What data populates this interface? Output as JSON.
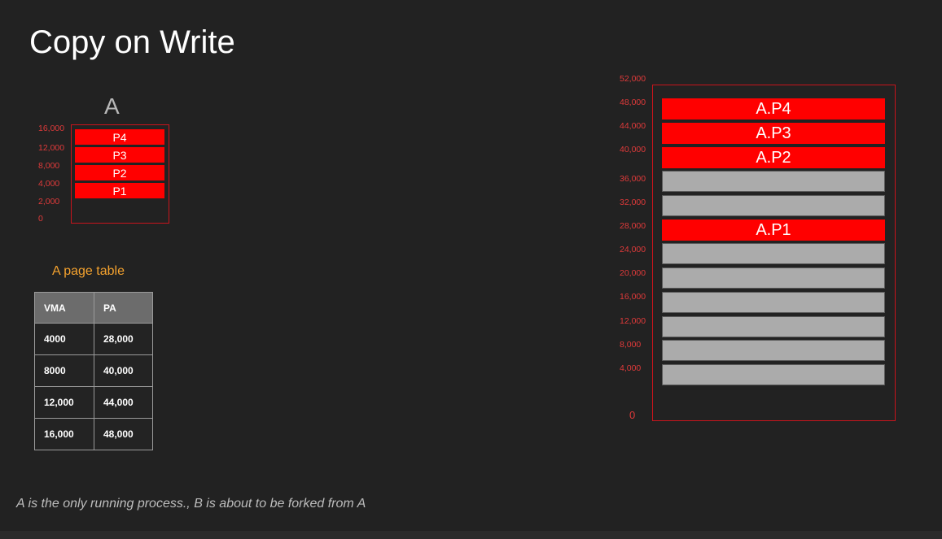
{
  "title": "Copy on Write",
  "process_a": {
    "label": "A",
    "axis": [
      "16,000",
      "12,000",
      "8,000",
      "4,000",
      "2,000",
      "0"
    ],
    "pages": [
      "P4",
      "P3",
      "P2",
      "P1"
    ]
  },
  "page_table": {
    "title": "A page table",
    "headers": [
      "VMA",
      "PA"
    ],
    "rows": [
      [
        "4000",
        "28,000"
      ],
      [
        "8000",
        "40,000"
      ],
      [
        "12,000",
        "44,000"
      ],
      [
        "16,000",
        "48,000"
      ]
    ]
  },
  "physical_memory": {
    "axis": [
      "52,000",
      "48,000",
      "44,000",
      "40,000",
      "36,000",
      "32,000",
      "28,000",
      "24,000",
      "20,000",
      "16,000",
      "12,000",
      "8,000",
      "4,000",
      "0"
    ],
    "frames": [
      {
        "label": "A.P4",
        "state": "used"
      },
      {
        "label": "A.P3",
        "state": "used"
      },
      {
        "label": "A.P2",
        "state": "used"
      },
      {
        "label": "",
        "state": "free"
      },
      {
        "label": "",
        "state": "free"
      },
      {
        "label": "A.P1",
        "state": "used"
      },
      {
        "label": "",
        "state": "free"
      },
      {
        "label": "",
        "state": "free"
      },
      {
        "label": "",
        "state": "free"
      },
      {
        "label": "",
        "state": "free"
      },
      {
        "label": "",
        "state": "free"
      },
      {
        "label": "",
        "state": "free"
      }
    ]
  },
  "colors": {
    "background": "#222222",
    "used_page": "#ff0000",
    "free_page": "#ababab",
    "axis": "#e03a3a",
    "table_title": "#f4a22e"
  },
  "caption": "A is the only running process., B is about to be forked from A"
}
